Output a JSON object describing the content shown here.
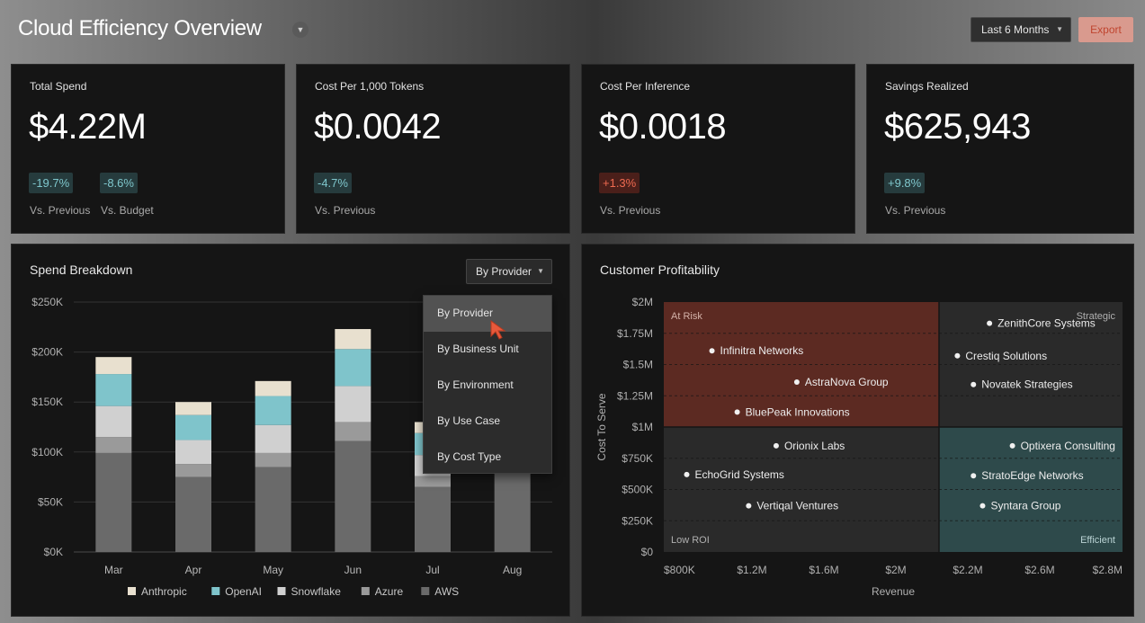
{
  "header": {
    "title": "Cloud Efficiency Overview",
    "range_label": "Last 6 Months",
    "export_label": "Export"
  },
  "kpis": [
    {
      "label": "Total Spend",
      "value": "$4.22M",
      "badges": [
        {
          "text": "-19.7%",
          "tone": "good",
          "sub": "Vs. Previous"
        },
        {
          "text": "-8.6%",
          "tone": "good",
          "sub": "Vs. Budget"
        }
      ]
    },
    {
      "label": "Cost Per 1,000 Tokens",
      "value": "$0.0042",
      "badges": [
        {
          "text": "-4.7%",
          "tone": "good",
          "sub": "Vs. Previous"
        }
      ]
    },
    {
      "label": "Cost Per Inference",
      "value": "$0.0018",
      "badges": [
        {
          "text": "+1.3%",
          "tone": "bad",
          "sub": "Vs. Previous"
        }
      ]
    },
    {
      "label": "Savings Realized",
      "value": "$625,943",
      "badges": [
        {
          "text": "+9.8%",
          "tone": "good",
          "sub": "Vs. Previous"
        }
      ]
    }
  ],
  "spend": {
    "title": "Spend Breakdown",
    "dropdown_label": "By Provider",
    "menu": [
      "By Provider",
      "By Business Unit",
      "By Environment",
      "By Use Case",
      "By Cost Type"
    ],
    "selected_index": 0
  },
  "profit": {
    "title": "Customer Profitability"
  },
  "colors": {
    "anthropic": "#e8e0cf",
    "openai": "#7fc4cb",
    "snowflake": "#d0d0d0",
    "azure": "#9a9a9a",
    "aws": "#6a6a6a",
    "at_risk": "#5c2a22",
    "efficient": "#2e4a4b",
    "neutral": "#2a2a2a",
    "badge_good": "#7fc7cd",
    "badge_bad": "#ee6a50"
  },
  "icons": {
    "title_caret": "chevron-down-icon",
    "cursor": "pointer-cursor-icon"
  },
  "chart_data": [
    {
      "type": "bar",
      "stacked": true,
      "categories": [
        "Mar",
        "Apr",
        "May",
        "Jun",
        "Jul",
        "Aug"
      ],
      "ylim": [
        0,
        250000
      ],
      "yticks": [
        "$0K",
        "$50K",
        "$100K",
        "$150K",
        "$200K",
        "$250K"
      ],
      "ytick_values": [
        0,
        50000,
        100000,
        150000,
        200000,
        250000
      ],
      "legend_position": "bottom",
      "series": [
        {
          "name": "AWS",
          "key": "aws",
          "values": [
            99000,
            75000,
            85000,
            111000,
            65000,
            100000
          ]
        },
        {
          "name": "Azure",
          "key": "azure",
          "values": [
            16000,
            13000,
            14000,
            19000,
            11000,
            0
          ]
        },
        {
          "name": "Snowflake",
          "key": "snowflake",
          "values": [
            31000,
            24000,
            28000,
            36000,
            21000,
            0
          ]
        },
        {
          "name": "OpenAI",
          "key": "openai",
          "values": [
            32000,
            25000,
            29000,
            37000,
            22000,
            0
          ]
        },
        {
          "name": "Anthropic",
          "key": "anthropic",
          "values": [
            17000,
            13000,
            15000,
            20000,
            11000,
            0
          ]
        }
      ],
      "legend_order": [
        "Anthropic",
        "OpenAI",
        "Snowflake",
        "Azure",
        "AWS"
      ]
    },
    {
      "type": "scatter",
      "xlabel": "Revenue",
      "ylabel": "Cost To Serve",
      "xlim": [
        800000,
        2800000
      ],
      "ylim": [
        0,
        2000000
      ],
      "xticks": [
        "$800K",
        "$1.2M",
        "$1.6M",
        "$2M",
        "$2.2M",
        "$2.6M",
        "$2.8M"
      ],
      "yticks": [
        "$0",
        "$250K",
        "$500K",
        "$750K",
        "$1M",
        "$1.25M",
        "$1.5M",
        "$1.75M",
        "$2M"
      ],
      "quadrant_split": {
        "x": 2000000,
        "y": 1000000
      },
      "quadrants": {
        "top_left": "At Risk",
        "top_right": "Strategic",
        "bottom_left": "Low ROI",
        "bottom_right": "Efficient"
      },
      "points": [
        {
          "name": "ZenithCore Systems",
          "x": 2220000,
          "y": 1830000
        },
        {
          "name": "Infinitra Networks",
          "x": 1010000,
          "y": 1610000
        },
        {
          "name": "Crestiq Solutions",
          "x": 2080000,
          "y": 1570000
        },
        {
          "name": "AstraNova Group",
          "x": 1380000,
          "y": 1360000
        },
        {
          "name": "Novatek Strategies",
          "x": 2150000,
          "y": 1340000
        },
        {
          "name": "BluePeak Innovations",
          "x": 1120000,
          "y": 1120000
        },
        {
          "name": "Orionix Labs",
          "x": 1290000,
          "y": 850000
        },
        {
          "name": "Optixera Consulting",
          "x": 2320000,
          "y": 850000
        },
        {
          "name": "EchoGrid Systems",
          "x": 900000,
          "y": 620000
        },
        {
          "name": "StratoEdge Networks",
          "x": 2150000,
          "y": 610000
        },
        {
          "name": "Vertiqal Ventures",
          "x": 1170000,
          "y": 370000
        },
        {
          "name": "Syntara Group",
          "x": 2190000,
          "y": 370000
        }
      ]
    }
  ]
}
